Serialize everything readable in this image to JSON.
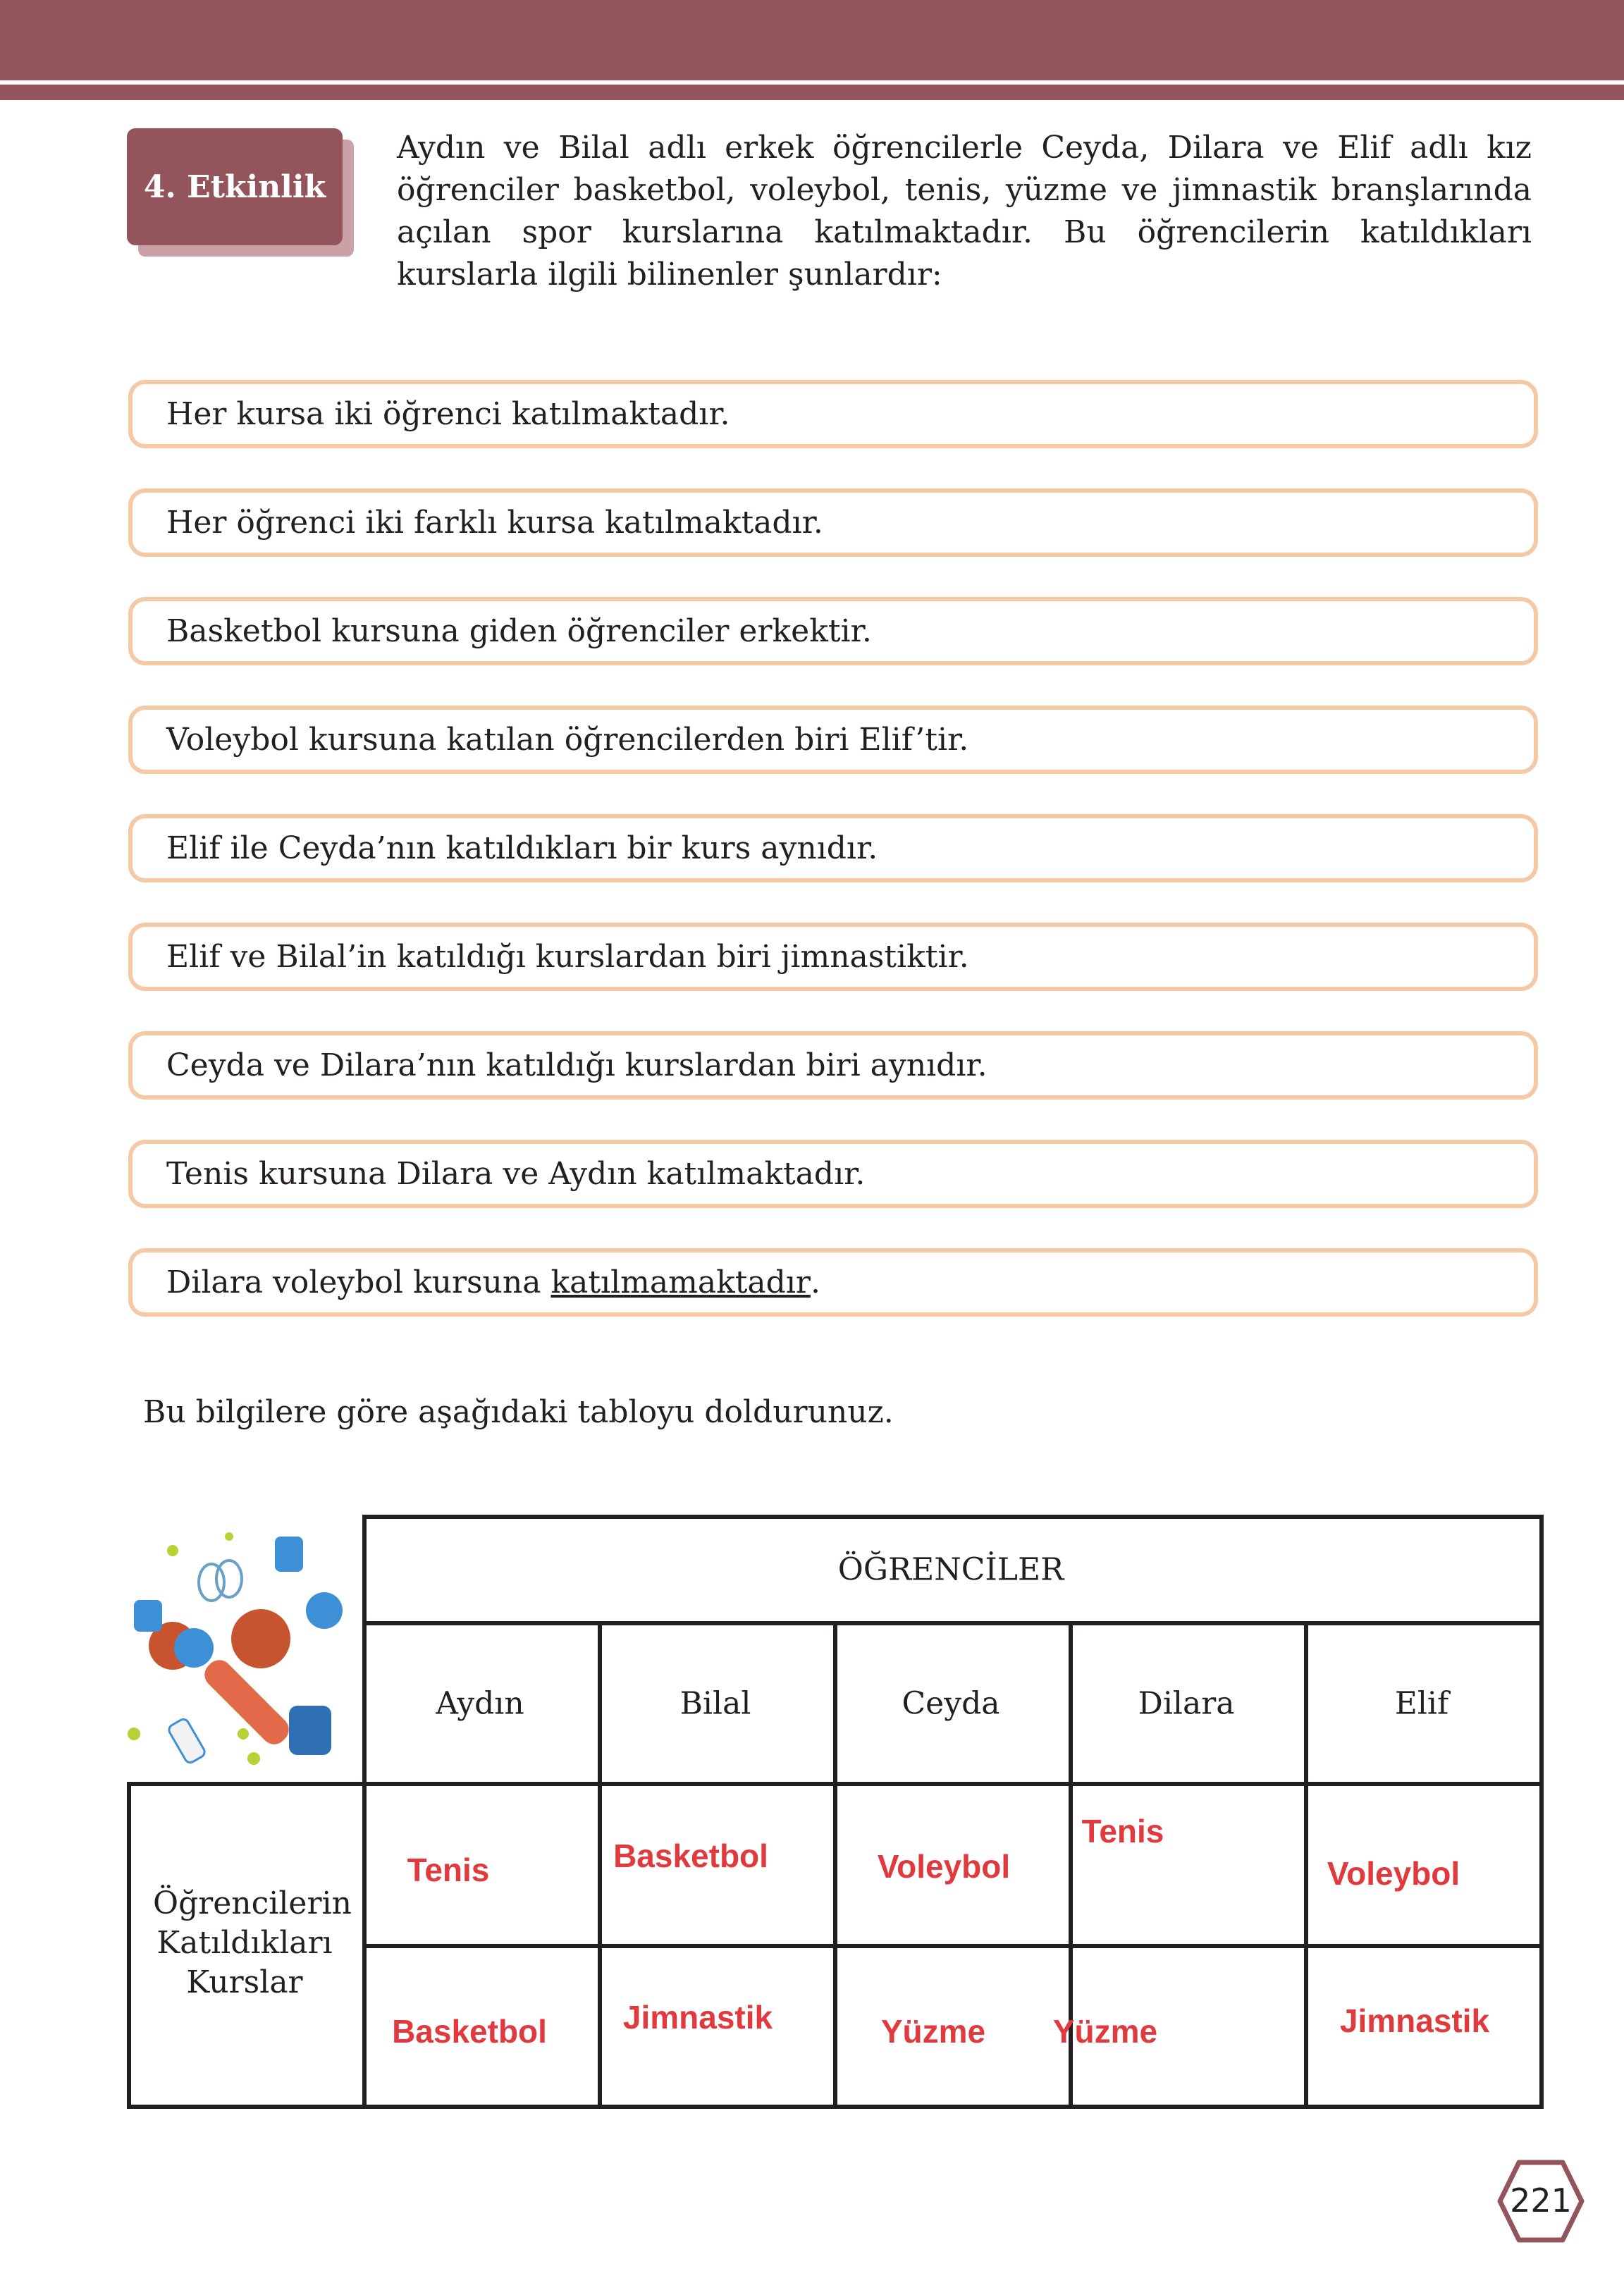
{
  "header": {
    "color": "#93545c"
  },
  "activity": {
    "label": "4. Etkinlik",
    "intro": "Aydın ve Bilal adlı erkek öğrencilerle Ceyda, Dilara ve Elif adlı kız öğrenciler basketbol, voleybol, tenis, yüzme ve jimnastik branşlarında açılan spor kurslarına katılmaktadır. Bu öğrencilerin katıldıkları kurslarla ilgili bilinenler şunlardır:"
  },
  "clues": [
    {
      "text": "Her kursa iki öğrenci katılmaktadır."
    },
    {
      "text": "Her öğrenci iki farklı kursa katılmaktadır."
    },
    {
      "text": "Basketbol kursuna giden öğrenciler erkektir."
    },
    {
      "text": "Voleybol kursuna katılan öğrencilerden biri Elif’tir."
    },
    {
      "text": "Elif ile Ceyda’nın katıldıkları bir kurs aynıdır."
    },
    {
      "text": "Elif ve Bilal’in katıldığı kurslardan biri jimnastiktir."
    },
    {
      "text": "Ceyda ve Dilara’nın katıldığı kurslardan biri aynıdır."
    },
    {
      "text": "Tenis kursuna Dilara ve Aydın katılmaktadır."
    },
    {
      "text": "Dilara voleybol kursuna ",
      "underlined": "katılmamaktadır",
      "end": "."
    }
  ],
  "instruction": "Bu bilgilere göre aşağıdaki tabloyu doldurunuz.",
  "table": {
    "header": "ÖĞRENCİLER",
    "row_label": "Öğrencilerin Katıldıkları Kurslar",
    "students": [
      "Aydın",
      "Bilal",
      "Ceyda",
      "Dilara",
      "Elif"
    ],
    "row1": [
      "Tenis",
      "Basketbol",
      "Voleybol",
      "Tenis",
      "Voleybol"
    ],
    "row2": [
      "Basketbol",
      "Jimnastik",
      "Yüzme",
      "Yüzme",
      "Jimnastik"
    ],
    "answer_color": "#e03a3e"
  },
  "page_number": "221"
}
